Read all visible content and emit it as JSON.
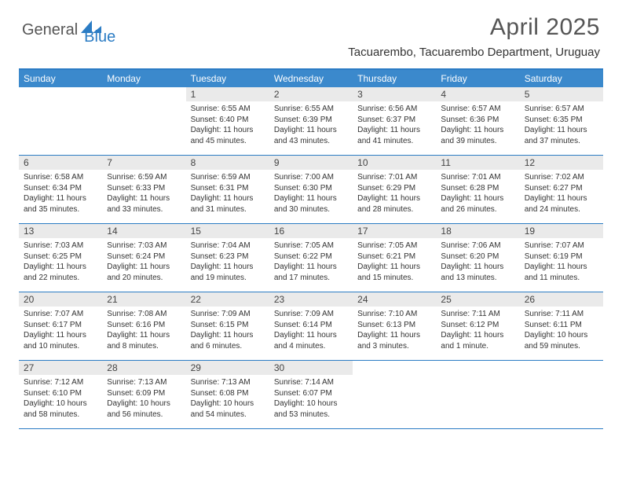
{
  "logo": {
    "part1": "General",
    "part2": "Blue"
  },
  "title": "April 2025",
  "location": "Tacuarembo, Tacuarembo Department, Uruguay",
  "dayHeaders": [
    "Sunday",
    "Monday",
    "Tuesday",
    "Wednesday",
    "Thursday",
    "Friday",
    "Saturday"
  ],
  "colors": {
    "accent": "#2b7cc4",
    "headerBg": "#3b89cc",
    "dayNumBg": "#eaeaea",
    "text": "#333333"
  },
  "weeks": [
    [
      {
        "n": "",
        "empty": true
      },
      {
        "n": "",
        "empty": true
      },
      {
        "n": "1",
        "sunrise": "6:55 AM",
        "sunset": "6:40 PM",
        "daylight": "11 hours and 45 minutes."
      },
      {
        "n": "2",
        "sunrise": "6:55 AM",
        "sunset": "6:39 PM",
        "daylight": "11 hours and 43 minutes."
      },
      {
        "n": "3",
        "sunrise": "6:56 AM",
        "sunset": "6:37 PM",
        "daylight": "11 hours and 41 minutes."
      },
      {
        "n": "4",
        "sunrise": "6:57 AM",
        "sunset": "6:36 PM",
        "daylight": "11 hours and 39 minutes."
      },
      {
        "n": "5",
        "sunrise": "6:57 AM",
        "sunset": "6:35 PM",
        "daylight": "11 hours and 37 minutes."
      }
    ],
    [
      {
        "n": "6",
        "sunrise": "6:58 AM",
        "sunset": "6:34 PM",
        "daylight": "11 hours and 35 minutes."
      },
      {
        "n": "7",
        "sunrise": "6:59 AM",
        "sunset": "6:33 PM",
        "daylight": "11 hours and 33 minutes."
      },
      {
        "n": "8",
        "sunrise": "6:59 AM",
        "sunset": "6:31 PM",
        "daylight": "11 hours and 31 minutes."
      },
      {
        "n": "9",
        "sunrise": "7:00 AM",
        "sunset": "6:30 PM",
        "daylight": "11 hours and 30 minutes."
      },
      {
        "n": "10",
        "sunrise": "7:01 AM",
        "sunset": "6:29 PM",
        "daylight": "11 hours and 28 minutes."
      },
      {
        "n": "11",
        "sunrise": "7:01 AM",
        "sunset": "6:28 PM",
        "daylight": "11 hours and 26 minutes."
      },
      {
        "n": "12",
        "sunrise": "7:02 AM",
        "sunset": "6:27 PM",
        "daylight": "11 hours and 24 minutes."
      }
    ],
    [
      {
        "n": "13",
        "sunrise": "7:03 AM",
        "sunset": "6:25 PM",
        "daylight": "11 hours and 22 minutes."
      },
      {
        "n": "14",
        "sunrise": "7:03 AM",
        "sunset": "6:24 PM",
        "daylight": "11 hours and 20 minutes."
      },
      {
        "n": "15",
        "sunrise": "7:04 AM",
        "sunset": "6:23 PM",
        "daylight": "11 hours and 19 minutes."
      },
      {
        "n": "16",
        "sunrise": "7:05 AM",
        "sunset": "6:22 PM",
        "daylight": "11 hours and 17 minutes."
      },
      {
        "n": "17",
        "sunrise": "7:05 AM",
        "sunset": "6:21 PM",
        "daylight": "11 hours and 15 minutes."
      },
      {
        "n": "18",
        "sunrise": "7:06 AM",
        "sunset": "6:20 PM",
        "daylight": "11 hours and 13 minutes."
      },
      {
        "n": "19",
        "sunrise": "7:07 AM",
        "sunset": "6:19 PM",
        "daylight": "11 hours and 11 minutes."
      }
    ],
    [
      {
        "n": "20",
        "sunrise": "7:07 AM",
        "sunset": "6:17 PM",
        "daylight": "11 hours and 10 minutes."
      },
      {
        "n": "21",
        "sunrise": "7:08 AM",
        "sunset": "6:16 PM",
        "daylight": "11 hours and 8 minutes."
      },
      {
        "n": "22",
        "sunrise": "7:09 AM",
        "sunset": "6:15 PM",
        "daylight": "11 hours and 6 minutes."
      },
      {
        "n": "23",
        "sunrise": "7:09 AM",
        "sunset": "6:14 PM",
        "daylight": "11 hours and 4 minutes."
      },
      {
        "n": "24",
        "sunrise": "7:10 AM",
        "sunset": "6:13 PM",
        "daylight": "11 hours and 3 minutes."
      },
      {
        "n": "25",
        "sunrise": "7:11 AM",
        "sunset": "6:12 PM",
        "daylight": "11 hours and 1 minute."
      },
      {
        "n": "26",
        "sunrise": "7:11 AM",
        "sunset": "6:11 PM",
        "daylight": "10 hours and 59 minutes."
      }
    ],
    [
      {
        "n": "27",
        "sunrise": "7:12 AM",
        "sunset": "6:10 PM",
        "daylight": "10 hours and 58 minutes."
      },
      {
        "n": "28",
        "sunrise": "7:13 AM",
        "sunset": "6:09 PM",
        "daylight": "10 hours and 56 minutes."
      },
      {
        "n": "29",
        "sunrise": "7:13 AM",
        "sunset": "6:08 PM",
        "daylight": "10 hours and 54 minutes."
      },
      {
        "n": "30",
        "sunrise": "7:14 AM",
        "sunset": "6:07 PM",
        "daylight": "10 hours and 53 minutes."
      },
      {
        "n": "",
        "empty": true
      },
      {
        "n": "",
        "empty": true
      },
      {
        "n": "",
        "empty": true
      }
    ]
  ],
  "labels": {
    "sunrise": "Sunrise:",
    "sunset": "Sunset:",
    "daylight": "Daylight:"
  }
}
